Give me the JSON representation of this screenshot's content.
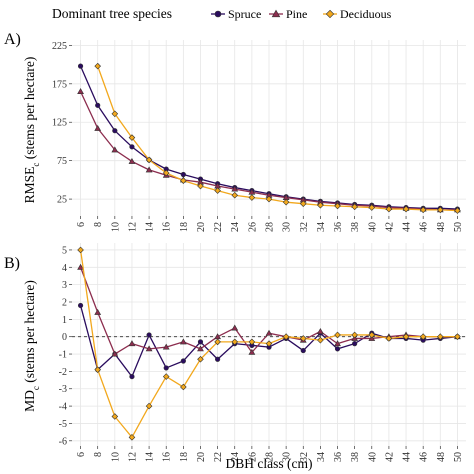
{
  "legend": {
    "title": "Dominant tree species",
    "entries": [
      "Spruce",
      "Pine",
      "Deciduous"
    ]
  },
  "colors": {
    "Spruce": "#2a0c5e",
    "Pine": "#8c2d4e",
    "Deciduous": "#f2a81d",
    "grid": "#e6e6e6",
    "zero_line": "#333333"
  },
  "markers": {
    "Spruce": "circle",
    "Pine": "triangle",
    "Deciduous": "diamond"
  },
  "chart_data": [
    {
      "type": "line",
      "panel_label": "A)",
      "ylabel_main": "RMSE",
      "ylabel_sub": "c",
      "ylabel_rest": " (stems per hectare)",
      "xlabel": "",
      "x": [
        6,
        8,
        10,
        12,
        14,
        16,
        18,
        20,
        22,
        24,
        26,
        28,
        30,
        32,
        34,
        36,
        38,
        40,
        42,
        44,
        46,
        48,
        50
      ],
      "xlim": [
        5,
        51
      ],
      "ylim": [
        3,
        232
      ],
      "yticks": [
        25,
        75,
        125,
        175,
        225
      ],
      "grid": true,
      "series": [
        {
          "name": "Spruce",
          "values": [
            198,
            147,
            114,
            93,
            76,
            64,
            57,
            51,
            45,
            40,
            36,
            32,
            28,
            25,
            22,
            20,
            18,
            17,
            15,
            14,
            13,
            13,
            12
          ]
        },
        {
          "name": "Pine",
          "values": [
            165,
            117,
            89,
            74,
            63,
            56,
            50,
            47,
            42,
            38,
            34,
            30,
            27,
            24,
            21,
            19,
            17,
            16,
            14,
            13,
            12,
            11,
            11
          ]
        },
        {
          "name": "Deciduous",
          "values": [
            null,
            198,
            136,
            105,
            76,
            59,
            49,
            42,
            36,
            30,
            27,
            25,
            21,
            19,
            17,
            16,
            15,
            14,
            12,
            12,
            11,
            11,
            10
          ]
        }
      ]
    },
    {
      "type": "line",
      "panel_label": "B)",
      "ylabel_main": "MD",
      "ylabel_sub": "c",
      "ylabel_rest": " (stems per hectare)",
      "xlabel": "DBH class (cm)",
      "x": [
        6,
        8,
        10,
        12,
        14,
        16,
        18,
        20,
        22,
        24,
        26,
        28,
        30,
        32,
        34,
        36,
        38,
        40,
        42,
        44,
        46,
        48,
        50
      ],
      "xlim": [
        5,
        51
      ],
      "ylim": [
        -6.3,
        5.4
      ],
      "yticks": [
        -6,
        -5,
        -4,
        -3,
        -2,
        -1,
        0,
        1,
        2,
        3,
        4,
        5
      ],
      "ytick_labels": [
        "-6",
        "-5",
        "-4",
        "-3",
        "-2",
        "-1",
        "0",
        "1",
        "2",
        "3",
        "4",
        "5"
      ],
      "grid": true,
      "reference_line": 0,
      "series": [
        {
          "name": "Spruce",
          "values": [
            1.8,
            -1.9,
            -1.0,
            -2.3,
            0.1,
            -1.8,
            -1.4,
            -0.3,
            -1.3,
            -0.4,
            -0.5,
            -0.6,
            -0.1,
            -0.8,
            0.2,
            -0.7,
            -0.4,
            0.2,
            -0.1,
            -0.1,
            -0.2,
            -0.1,
            0.0
          ]
        },
        {
          "name": "Pine",
          "values": [
            4.0,
            1.4,
            -1.0,
            -0.4,
            -0.7,
            -0.6,
            -0.3,
            -0.7,
            0.0,
            0.5,
            -0.9,
            0.2,
            0.0,
            -0.2,
            0.3,
            -0.4,
            -0.1,
            -0.1,
            0.0,
            0.1,
            0.0,
            0.0,
            0.0
          ]
        },
        {
          "name": "Deciduous",
          "values": [
            5.0,
            -1.9,
            -4.6,
            -5.8,
            -4.0,
            -2.3,
            -2.9,
            -1.3,
            -0.3,
            -0.3,
            -0.3,
            -0.4,
            0.0,
            -0.1,
            -0.2,
            0.1,
            0.1,
            0.1,
            -0.1,
            0.0,
            0.0,
            0.0,
            0.0
          ]
        }
      ]
    }
  ]
}
